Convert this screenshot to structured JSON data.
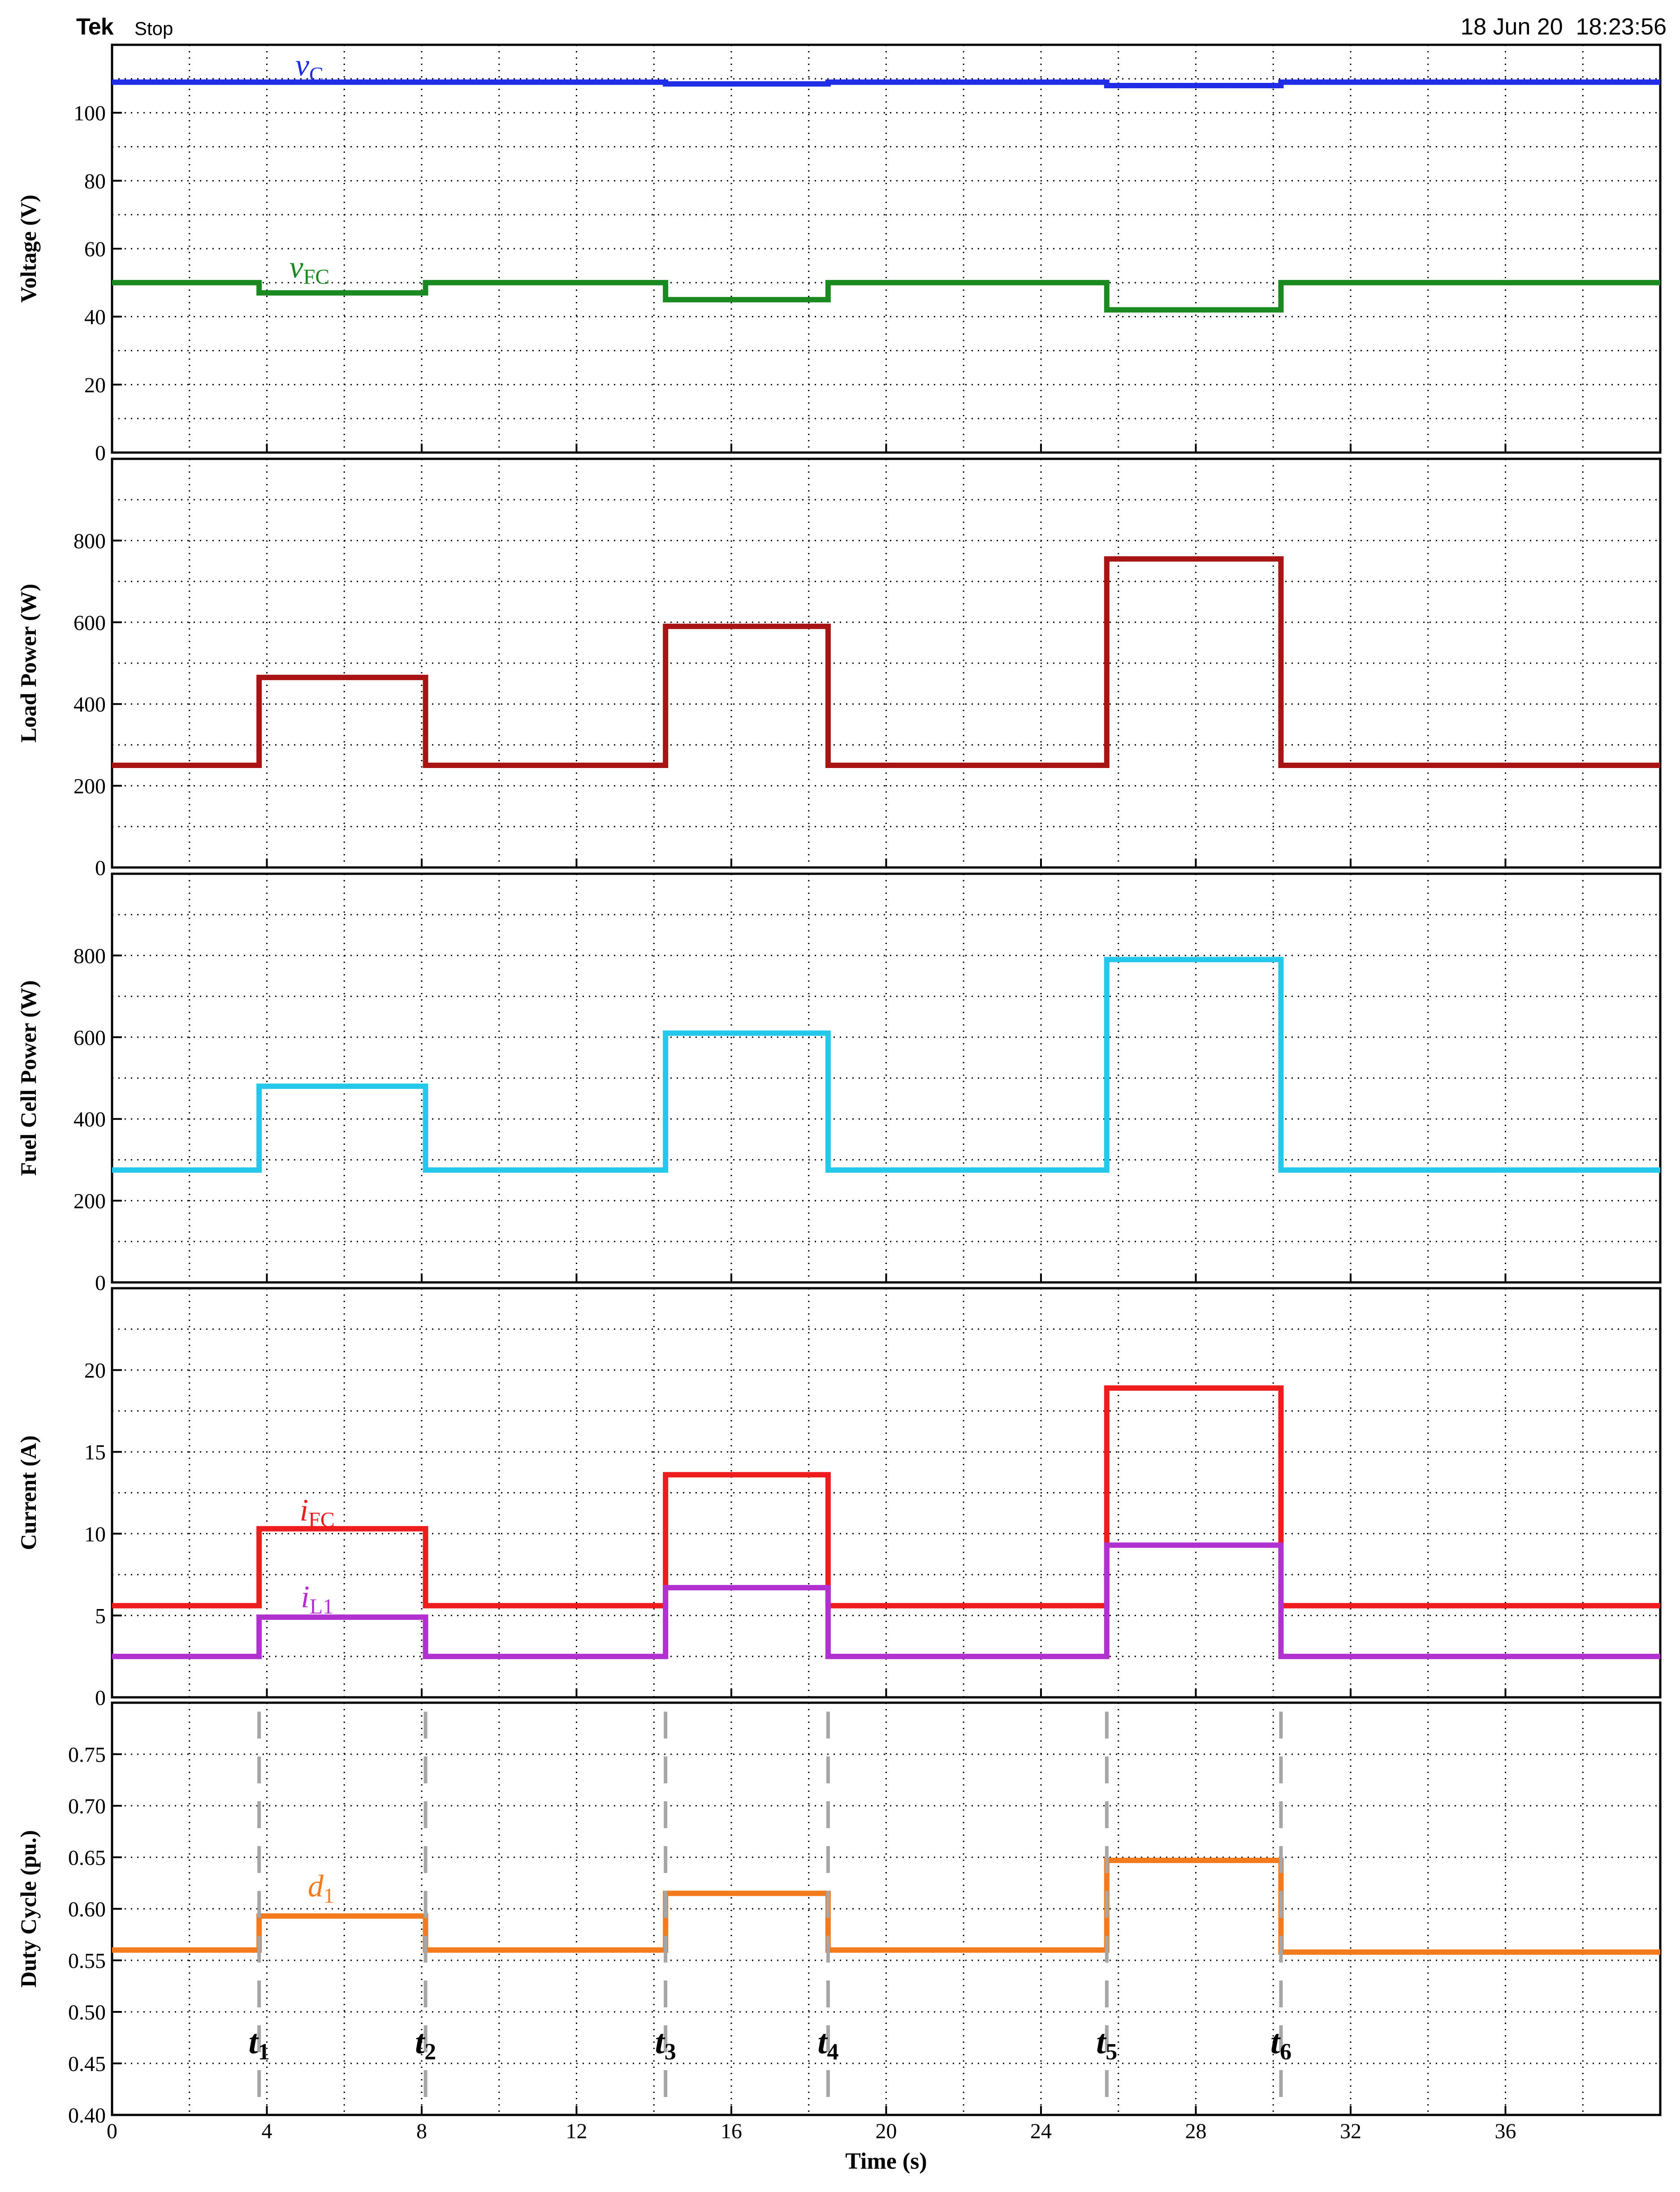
{
  "header": {
    "brand": "Tek",
    "state": "Stop",
    "timestamp": "18 Jun 20  18:23:56"
  },
  "chart_data": {
    "type": "line",
    "x_axis": {
      "label": "Time (s)",
      "range": [
        0,
        40
      ],
      "tick_values": [
        0,
        4,
        8,
        12,
        16,
        20,
        24,
        28,
        32,
        36
      ],
      "tick_labels": [
        "0",
        "4",
        "8",
        "12",
        "16",
        "20",
        "24",
        "28",
        "32",
        "36"
      ],
      "minor_grid_step": 2
    },
    "grid": "dotted",
    "events": [
      {
        "name": "t1",
        "label": "t",
        "sub": "1",
        "x": 3.8
      },
      {
        "name": "t2",
        "label": "t",
        "sub": "2",
        "x": 8.1
      },
      {
        "name": "t3",
        "label": "t",
        "sub": "3",
        "x": 14.3
      },
      {
        "name": "t4",
        "label": "t",
        "sub": "4",
        "x": 18.5
      },
      {
        "name": "t5",
        "label": "t",
        "sub": "5",
        "x": 25.7
      },
      {
        "name": "t6",
        "label": "t",
        "sub": "6",
        "x": 30.2
      }
    ],
    "panels": [
      {
        "name": "voltage",
        "ylabel": "Voltage (V)",
        "ylim": [
          0,
          120
        ],
        "tick_values": [
          0,
          20,
          40,
          60,
          80,
          100
        ],
        "tick_labels": [
          "0",
          "20",
          "40",
          "60",
          "80",
          "100"
        ],
        "grid_step": 10,
        "series": [
          {
            "name": "vC",
            "label": "v",
            "sub": "C",
            "color": "#1f2ee6",
            "x": [
              0,
              14.3,
              14.3,
              18.5,
              18.5,
              25.7,
              25.7,
              30.2,
              30.2,
              40
            ],
            "y": [
              109,
              109,
              108.5,
              108.5,
              109,
              109,
              108,
              108,
              109,
              109
            ],
            "label_at": [
              5.1,
              111
            ]
          },
          {
            "name": "vFC",
            "label": "v",
            "sub": "FC",
            "color": "#1a8a20",
            "x": [
              0,
              3.8,
              3.8,
              8.1,
              8.1,
              14.3,
              14.3,
              18.5,
              18.5,
              25.7,
              25.7,
              30.2,
              30.2,
              40
            ],
            "y": [
              50,
              50,
              47,
              47,
              50,
              50,
              45,
              45,
              50,
              50,
              42,
              42,
              50,
              50
            ],
            "label_at": [
              5.1,
              51.5
            ]
          }
        ]
      },
      {
        "name": "load-power",
        "ylabel": "Load Power (W)",
        "ylim": [
          0,
          1000
        ],
        "tick_values": [
          0,
          200,
          400,
          600,
          800
        ],
        "tick_labels": [
          "0",
          "200",
          "400",
          "600",
          "800"
        ],
        "grid_step": 100,
        "series": [
          {
            "name": "load-power",
            "color": "#a81414",
            "x": [
              0,
              3.8,
              3.8,
              8.1,
              8.1,
              14.3,
              14.3,
              18.5,
              18.5,
              25.7,
              25.7,
              30.2,
              30.2,
              40
            ],
            "y": [
              250,
              250,
              465,
              465,
              250,
              250,
              590,
              590,
              250,
              250,
              755,
              755,
              250,
              250
            ]
          }
        ]
      },
      {
        "name": "fuel-cell-power",
        "ylabel": "Fuel Cell Power (W)",
        "ylim": [
          0,
          1000
        ],
        "tick_values": [
          0,
          200,
          400,
          600,
          800
        ],
        "tick_labels": [
          "0",
          "200",
          "400",
          "600",
          "800"
        ],
        "grid_step": 100,
        "series": [
          {
            "name": "fuel-cell-power",
            "color": "#23c8ea",
            "x": [
              0,
              3.8,
              3.8,
              8.1,
              8.1,
              14.3,
              14.3,
              18.5,
              18.5,
              25.7,
              25.7,
              30.2,
              30.2,
              40
            ],
            "y": [
              275,
              275,
              480,
              480,
              275,
              275,
              610,
              610,
              275,
              275,
              790,
              790,
              275,
              275
            ]
          }
        ]
      },
      {
        "name": "current",
        "ylabel": "Current (A)",
        "ylim": [
          0,
          25
        ],
        "tick_values": [
          0,
          5,
          10,
          15,
          20
        ],
        "tick_labels": [
          "0",
          "5",
          "10",
          "15",
          "20"
        ],
        "grid_step": 2.5,
        "series": [
          {
            "name": "iFC",
            "label": "i",
            "sub": "FC",
            "color": "#ee1c1c",
            "x": [
              0,
              3.8,
              3.8,
              8.1,
              8.1,
              14.3,
              14.3,
              18.5,
              18.5,
              25.7,
              25.7,
              30.2,
              30.2,
              40
            ],
            "y": [
              5.6,
              5.6,
              10.3,
              10.3,
              5.6,
              5.6,
              13.6,
              13.6,
              5.6,
              5.6,
              18.9,
              18.9,
              5.6,
              5.6
            ],
            "label_at": [
              5.3,
              10.8
            ]
          },
          {
            "name": "iL1",
            "label": "i",
            "sub": "L1",
            "color": "#b030d0",
            "x": [
              0,
              3.8,
              3.8,
              8.1,
              8.1,
              14.3,
              14.3,
              18.5,
              18.5,
              25.7,
              25.7,
              30.2,
              30.2,
              40
            ],
            "y": [
              2.5,
              2.5,
              4.9,
              4.9,
              2.5,
              2.5,
              6.7,
              6.7,
              2.5,
              2.5,
              9.3,
              9.3,
              2.5,
              2.5
            ],
            "label_at": [
              5.3,
              5.5
            ]
          }
        ]
      },
      {
        "name": "duty-cycle",
        "ylabel": "Duty Cycle (pu.)",
        "ylim": [
          0.4,
          0.8
        ],
        "tick_values": [
          0.4,
          0.45,
          0.5,
          0.55,
          0.6,
          0.65,
          0.7,
          0.75
        ],
        "tick_labels": [
          "0.40",
          "0.45",
          "0.50",
          "0.55",
          "0.60",
          "0.65",
          "0.70",
          "0.75"
        ],
        "grid_step": 0.05,
        "series": [
          {
            "name": "d1",
            "label": "d",
            "sub": "1",
            "color": "#f47a1e",
            "x": [
              0,
              3.8,
              3.8,
              8.1,
              8.1,
              14.3,
              14.3,
              18.5,
              18.5,
              25.7,
              25.7,
              30.2,
              30.2,
              40
            ],
            "y": [
              0.56,
              0.56,
              0.593,
              0.593,
              0.56,
              0.56,
              0.615,
              0.615,
              0.56,
              0.56,
              0.647,
              0.647,
              0.558,
              0.558
            ],
            "label_at": [
              5.4,
              0.612
            ]
          }
        ]
      }
    ]
  }
}
